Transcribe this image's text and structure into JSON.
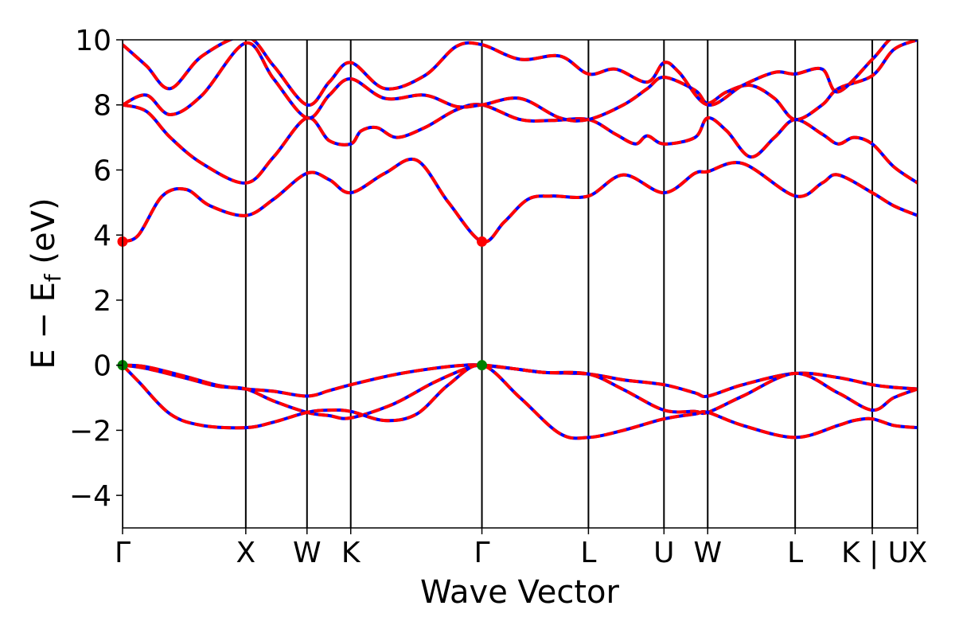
{
  "chart_data": {
    "type": "line",
    "title": "",
    "xlabel": "Wave Vector",
    "ylabel": {
      "main": "E − E",
      "sub": "f",
      "unit": " (eV)"
    },
    "ylim": [
      -5,
      10
    ],
    "yticks": [
      -4,
      -2,
      0,
      2,
      4,
      6,
      8,
      10
    ],
    "ytick_labels": [
      "−4",
      "−2",
      "0",
      "2",
      "4",
      "6",
      "8",
      "10"
    ],
    "x_range": [
      0,
      1
    ],
    "grid": false,
    "legend": "none",
    "high_symmetry_points": [
      {
        "label": "Γ",
        "x": 0.0
      },
      {
        "label": "X",
        "x": 0.155
      },
      {
        "label": "W",
        "x": 0.232
      },
      {
        "label": "K",
        "x": 0.287
      },
      {
        "label": "Γ",
        "x": 0.452
      },
      {
        "label": "L",
        "x": 0.586
      },
      {
        "label": "U",
        "x": 0.681
      },
      {
        "label": "W",
        "x": 0.736
      },
      {
        "label": "L",
        "x": 0.846
      },
      {
        "label": "K | U",
        "x": 0.943
      },
      {
        "label": "X",
        "x": 1.0
      }
    ],
    "colors": {
      "primary": "#ff0000",
      "overlay": "#0000ff",
      "cbm": "#ff0000",
      "vbm": "#008000",
      "axes": "#000000"
    },
    "series": [
      {
        "x": [
          0,
          0.03,
          0.08,
          0.12,
          0.155,
          0.19,
          0.232,
          0.26,
          0.287,
          0.34,
          0.39,
          0.43,
          0.452,
          0.49,
          0.53,
          0.586,
          0.63,
          0.681,
          0.72,
          0.736,
          0.78,
          0.846,
          0.9,
          0.943,
          0.97,
          1
        ],
        "y": [
          0,
          -0.05,
          -0.35,
          -0.62,
          -0.73,
          -0.8,
          -0.95,
          -0.78,
          -0.6,
          -0.3,
          -0.1,
          0,
          0,
          -0.1,
          -0.22,
          -0.27,
          -0.45,
          -0.6,
          -0.85,
          -0.95,
          -0.6,
          -0.25,
          -0.38,
          -0.6,
          -0.68,
          -0.73
        ]
      },
      {
        "x": [
          0,
          0.03,
          0.08,
          0.12,
          0.155,
          0.19,
          0.232,
          0.26,
          0.287,
          0.34,
          0.39,
          0.43,
          0.452,
          0.49,
          0.53,
          0.586,
          0.63,
          0.681,
          0.72,
          0.736,
          0.78,
          0.846,
          0.9,
          0.943,
          0.97,
          1
        ],
        "y": [
          0,
          -0.1,
          -0.4,
          -0.65,
          -0.73,
          -1.1,
          -1.45,
          -1.55,
          -1.62,
          -1.2,
          -0.55,
          -0.12,
          0,
          -0.1,
          -0.22,
          -0.27,
          -0.75,
          -1.38,
          -1.42,
          -1.45,
          -0.95,
          -0.25,
          -0.85,
          -1.38,
          -1.0,
          -0.73
        ]
      },
      {
        "x": [
          0,
          0.02,
          0.06,
          0.1,
          0.155,
          0.19,
          0.232,
          0.26,
          0.287,
          0.33,
          0.37,
          0.41,
          0.452,
          0.5,
          0.55,
          0.586,
          0.63,
          0.681,
          0.72,
          0.736,
          0.78,
          0.846,
          0.9,
          0.92,
          0.943,
          0.97,
          1
        ],
        "y": [
          0,
          -0.5,
          -1.5,
          -1.85,
          -1.92,
          -1.75,
          -1.45,
          -1.38,
          -1.42,
          -1.7,
          -1.5,
          -0.6,
          0,
          -1.0,
          -2.1,
          -2.22,
          -2.0,
          -1.65,
          -1.5,
          -1.45,
          -1.85,
          -2.22,
          -1.85,
          -1.7,
          -1.65,
          -1.85,
          -1.92
        ]
      },
      {
        "x": [
          0,
          0.02,
          0.05,
          0.08,
          0.11,
          0.155,
          0.19,
          0.232,
          0.26,
          0.287,
          0.33,
          0.37,
          0.41,
          0.452,
          0.48,
          0.51,
          0.54,
          0.586,
          0.63,
          0.681,
          0.72,
          0.736,
          0.78,
          0.846,
          0.88,
          0.9,
          0.943,
          0.97,
          1
        ],
        "y": [
          3.8,
          4.0,
          5.2,
          5.4,
          4.9,
          4.6,
          5.1,
          5.9,
          5.7,
          5.3,
          5.9,
          6.3,
          5.0,
          3.8,
          4.4,
          5.1,
          5.2,
          5.2,
          5.85,
          5.3,
          5.9,
          5.95,
          6.2,
          5.2,
          5.6,
          5.85,
          5.3,
          4.9,
          4.6
        ]
      },
      {
        "x": [
          0,
          0.03,
          0.06,
          0.1,
          0.155,
          0.19,
          0.232,
          0.26,
          0.287,
          0.3,
          0.32,
          0.345,
          0.38,
          0.42,
          0.452,
          0.5,
          0.54,
          0.586,
          0.62,
          0.645,
          0.66,
          0.681,
          0.72,
          0.736,
          0.76,
          0.79,
          0.82,
          0.846,
          0.88,
          0.9,
          0.92,
          0.943,
          0.97,
          1
        ],
        "y": [
          8.0,
          7.8,
          7.0,
          6.2,
          5.6,
          6.4,
          7.6,
          6.9,
          6.8,
          7.2,
          7.3,
          7.0,
          7.3,
          7.85,
          8.0,
          7.55,
          7.52,
          7.55,
          7.1,
          6.8,
          7.05,
          6.8,
          7.0,
          7.6,
          7.2,
          6.4,
          7.0,
          7.55,
          7.1,
          6.8,
          7.0,
          6.8,
          6.1,
          5.6
        ]
      },
      {
        "x": [
          0,
          0.03,
          0.06,
          0.1,
          0.155,
          0.19,
          0.232,
          0.26,
          0.287,
          0.33,
          0.38,
          0.42,
          0.452,
          0.5,
          0.55,
          0.586,
          0.63,
          0.66,
          0.681,
          0.72,
          0.736,
          0.76,
          0.79,
          0.82,
          0.846,
          0.88,
          0.9,
          0.943,
          0.97,
          1
        ],
        "y": [
          8.0,
          8.3,
          7.7,
          8.3,
          9.9,
          8.8,
          7.6,
          8.3,
          8.8,
          8.2,
          8.3,
          7.95,
          8.0,
          8.2,
          7.6,
          7.55,
          8.0,
          8.5,
          8.85,
          8.45,
          8.05,
          8.4,
          8.6,
          8.2,
          7.55,
          8.0,
          8.5,
          8.9,
          9.7,
          10.0
        ]
      },
      {
        "x": [
          0,
          0.03,
          0.06,
          0.1,
          0.155,
          0.19,
          0.232,
          0.26,
          0.287,
          0.33,
          0.38,
          0.42,
          0.452,
          0.5,
          0.55,
          0.586,
          0.62,
          0.66,
          0.681,
          0.7,
          0.736,
          0.78,
          0.82,
          0.846,
          0.88,
          0.9,
          0.943,
          0.97,
          1
        ],
        "y": [
          9.85,
          9.2,
          8.5,
          9.5,
          10.1,
          9.2,
          8.0,
          8.7,
          9.3,
          8.5,
          8.9,
          9.8,
          9.85,
          9.4,
          9.5,
          8.95,
          9.1,
          8.7,
          9.3,
          9.0,
          8.0,
          8.6,
          9.0,
          8.95,
          9.1,
          8.4,
          9.4,
          10.1,
          10.2
        ]
      }
    ]
  }
}
